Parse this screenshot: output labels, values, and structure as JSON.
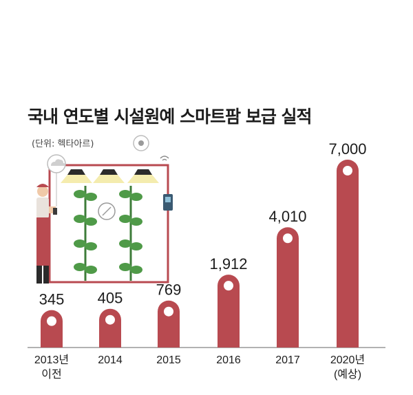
{
  "title": "국내 연도별 시설원예 스마트팜 보급 실적",
  "unit": "(단위: 헥타아르)",
  "colors": {
    "bar": "#b84a50",
    "bar_dark": "#9e3b41",
    "dot": "#ffffff",
    "baseline": "#666666"
  },
  "chart_data": {
    "type": "bar",
    "title": "국내 연도별 시설원예 스마트팜 보급 실적",
    "unit": "(단위: 헥타아르)",
    "categories": [
      [
        "2013년",
        "이전"
      ],
      [
        "2014"
      ],
      [
        "2015"
      ],
      [
        "2016"
      ],
      [
        "2017"
      ],
      [
        "2020년",
        "(예상)"
      ]
    ],
    "values": [
      345,
      405,
      769,
      1912,
      4010,
      7000
    ],
    "value_labels": [
      "345",
      "405",
      "769",
      "1,912",
      "4,010",
      "7,000"
    ],
    "ylim": [
      0,
      7000
    ],
    "grid": false,
    "legend": "none"
  }
}
